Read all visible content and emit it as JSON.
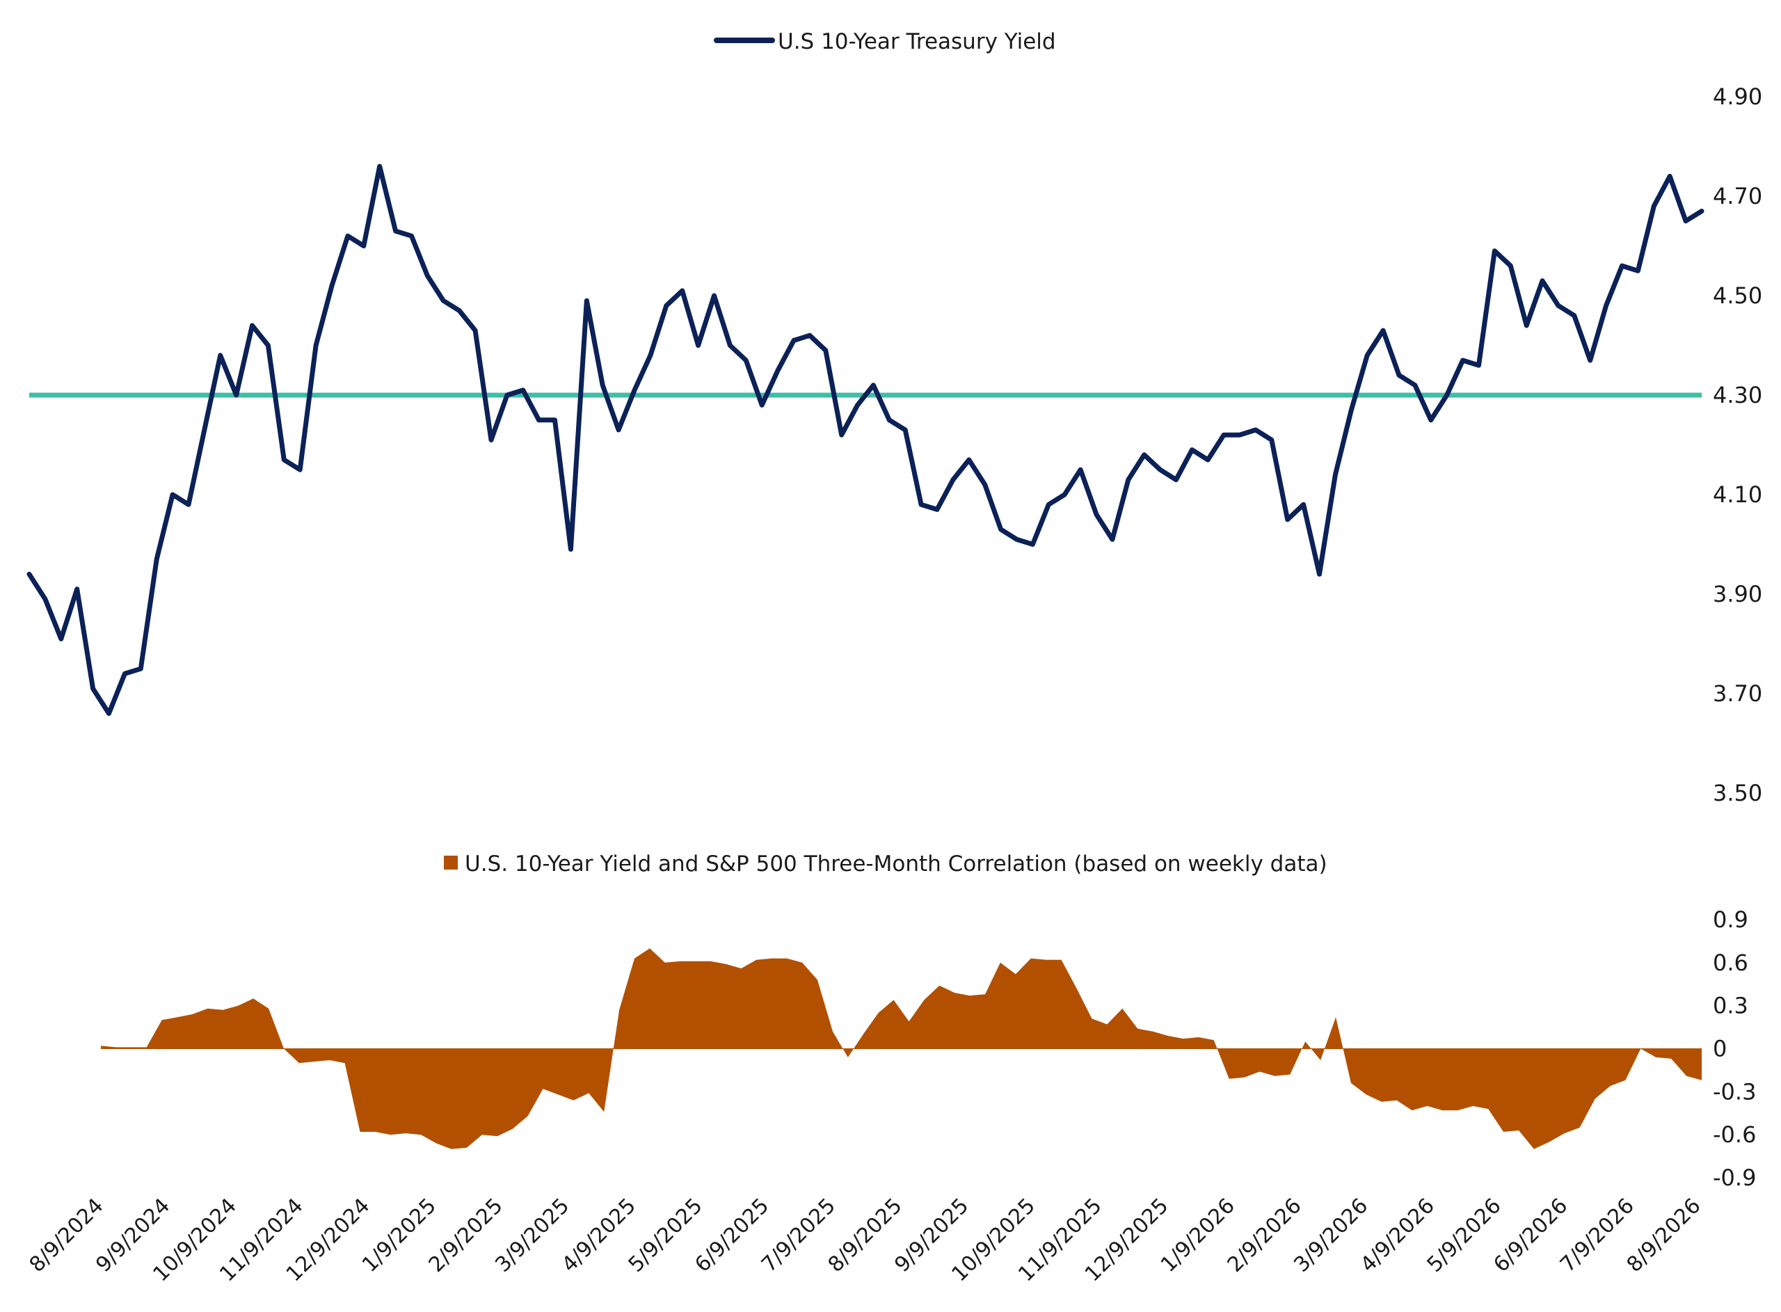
{
  "colors": {
    "yield_line": "#0b2158",
    "threshold_line": "#3dbfa6",
    "correlation_area": "#b25000",
    "text": "#1a1a1a"
  },
  "chart_data": [
    {
      "type": "line",
      "legend": "U.S 10-Year Treasury Yield",
      "ylim": [
        3.5,
        4.9
      ],
      "yticks": [
        "4.90",
        "4.70",
        "4.50",
        "4.30",
        "4.10",
        "3.90",
        "3.70",
        "3.50"
      ],
      "reference_line": 4.3,
      "legend_position": "top-center",
      "grid": false,
      "series": [
        {
          "name": "U.S 10-Year Treasury Yield",
          "values": [
            3.94,
            3.89,
            3.81,
            3.91,
            3.71,
            3.66,
            3.74,
            3.75,
            3.97,
            4.1,
            4.08,
            4.23,
            4.38,
            4.3,
            4.44,
            4.4,
            4.17,
            4.15,
            4.4,
            4.52,
            4.62,
            4.6,
            4.76,
            4.63,
            4.62,
            4.54,
            4.49,
            4.47,
            4.43,
            4.21,
            4.3,
            4.31,
            4.25,
            4.25,
            3.99,
            4.49,
            4.32,
            4.23,
            4.31,
            4.38,
            4.48,
            4.51,
            4.4,
            4.5,
            4.4,
            4.37,
            4.28,
            4.35,
            4.41,
            4.42,
            4.39,
            4.22,
            4.28,
            4.32,
            4.25,
            4.23,
            4.08,
            4.07,
            4.13,
            4.17,
            4.12,
            4.03,
            4.01,
            4.0,
            4.08,
            4.1,
            4.15,
            4.06,
            4.01,
            4.13,
            4.18,
            4.15,
            4.13,
            4.19,
            4.17,
            4.22,
            4.22,
            4.23,
            4.21,
            4.05,
            4.08,
            3.94,
            4.14,
            4.27,
            4.38,
            4.43,
            4.34,
            4.32,
            4.25,
            4.3,
            4.37,
            4.36,
            4.59,
            4.56,
            4.44,
            4.53,
            4.48,
            4.46,
            4.37,
            4.48,
            4.56,
            4.55,
            4.68,
            4.74,
            4.65,
            4.67
          ]
        }
      ]
    },
    {
      "type": "area",
      "legend": "U.S. 10-Year Yield and S&P 500 Three-Month Correlation (based on weekly data)",
      "ylim": [
        -0.9,
        0.9
      ],
      "yticks": [
        "0.9",
        "0.6",
        "0.3",
        "0",
        "-0.3",
        "-0.6",
        "-0.9"
      ],
      "legend_position": "top-center",
      "grid": false,
      "series": [
        {
          "name": "U.S. 10-Year Yield and S&P 500 Three-Month Correlation (based on weekly data)",
          "values": [
            0.02,
            0.01,
            0.01,
            0.01,
            0.2,
            0.22,
            0.24,
            0.28,
            0.27,
            0.3,
            0.35,
            0.28,
            0.0,
            -0.1,
            -0.09,
            -0.08,
            -0.1,
            -0.58,
            -0.58,
            -0.6,
            -0.59,
            -0.6,
            -0.66,
            -0.7,
            -0.69,
            -0.6,
            -0.61,
            -0.56,
            -0.47,
            -0.28,
            -0.32,
            -0.36,
            -0.31,
            -0.44,
            0.27,
            0.63,
            0.7,
            0.6,
            0.61,
            0.61,
            0.61,
            0.59,
            0.56,
            0.62,
            0.63,
            0.63,
            0.6,
            0.48,
            0.12,
            -0.06,
            0.1,
            0.25,
            0.34,
            0.19,
            0.34,
            0.44,
            0.39,
            0.37,
            0.38,
            0.6,
            0.52,
            0.63,
            0.62,
            0.62,
            0.42,
            0.21,
            0.17,
            0.28,
            0.14,
            0.12,
            0.09,
            0.07,
            0.08,
            0.06,
            -0.21,
            -0.2,
            -0.16,
            -0.19,
            -0.18,
            0.05,
            -0.08,
            0.22,
            -0.24,
            -0.32,
            -0.37,
            -0.36,
            -0.43,
            -0.4,
            -0.43,
            -0.43,
            -0.4,
            -0.42,
            -0.58,
            -0.57,
            -0.7,
            -0.65,
            -0.59,
            -0.55,
            -0.35,
            -0.26,
            -0.22,
            0.0,
            -0.06,
            -0.07,
            -0.19,
            -0.22
          ]
        }
      ]
    }
  ],
  "x_axis": {
    "tick_labels": [
      "8/9/2024",
      "9/9/2024",
      "10/9/2024",
      "11/9/2024",
      "12/9/2024",
      "1/9/2025",
      "2/9/2025",
      "3/9/2025",
      "4/9/2025",
      "5/9/2025",
      "6/9/2025",
      "7/9/2025",
      "8/9/2025",
      "9/9/2025",
      "10/9/2025",
      "11/9/2025",
      "12/9/2025",
      "1/9/2026",
      "2/9/2026",
      "3/9/2026",
      "4/9/2026",
      "5/9/2026",
      "6/9/2026",
      "7/9/2026",
      "8/9/2026"
    ]
  }
}
